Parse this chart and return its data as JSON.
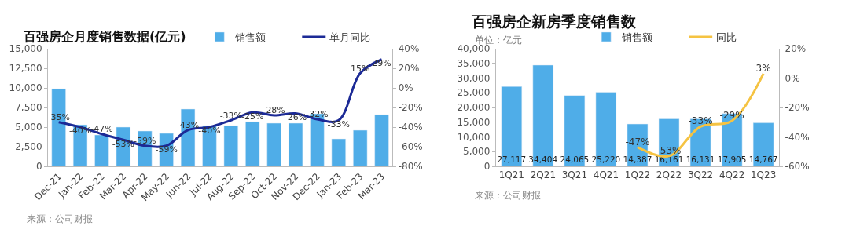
{
  "chart_data": [
    {
      "type": "bar",
      "title": "百强房企月度销售数据(亿元)",
      "categories": [
        "Dec-21",
        "Jan-22",
        "Feb-22",
        "Mar-22",
        "Apr-22",
        "May-22",
        "Jun-22",
        "Jul-22",
        "Aug-22",
        "Sep-22",
        "Oct-22",
        "Nov-22",
        "Dec-22",
        "Jan-23",
        "Feb-23",
        "Mar-23"
      ],
      "series": [
        {
          "name": "销售额",
          "color": "#4fade8",
          "values": [
            9900,
            5300,
            4000,
            5000,
            4500,
            4200,
            7300,
            5200,
            5200,
            5700,
            5500,
            5500,
            6700,
            3500,
            4600,
            6600
          ]
        },
        {
          "name": "单月同比",
          "type": "line",
          "axis": "y2",
          "color": "#1c2a96",
          "values": [
            -35,
            -40,
            -47,
            -53,
            -59,
            -59,
            -43,
            -40,
            -33,
            -25,
            -28,
            -26,
            -32,
            -33,
            15,
            29
          ],
          "value_labels": [
            "-35%",
            "-40%",
            "-47%",
            "-53%",
            "-59%",
            "-59%",
            "-43%",
            "-40%",
            "-33%",
            "-25%",
            "-28%",
            "-26%",
            "-32%",
            "-33%",
            "15%",
            "29%"
          ]
        }
      ],
      "ylim": [
        0,
        15000
      ],
      "yticks": [
        0,
        {
          "value": 2500,
          "label": "2,500"
        },
        {
          "value": 5000,
          "label": "5,000"
        },
        {
          "value": 7500,
          "label": "7,500"
        },
        {
          "value": 10000,
          "label": "10,000"
        },
        {
          "value": 12500,
          "label": "12,500"
        },
        {
          "value": 15000,
          "label": "15,000"
        }
      ],
      "y2lim": [
        -80,
        40
      ],
      "y2ticks": [
        {
          "value": -80,
          "label": "-80%"
        },
        {
          "value": -60,
          "label": "-60%"
        },
        {
          "value": -40,
          "label": "-40%"
        },
        {
          "value": -20,
          "label": "-20%"
        },
        {
          "value": 0,
          "label": "0%"
        },
        {
          "value": 20,
          "label": "20%"
        },
        {
          "value": 40,
          "label": "40%"
        }
      ],
      "legend": "top right",
      "marker": "none",
      "line_style": "solid",
      "annotations": [
        "来源：公司财报"
      ]
    },
    {
      "type": "bar",
      "title": "百强房企新房季度销售数",
      "subtitle": "单位：亿元",
      "categories": [
        "1Q21",
        "2Q21",
        "3Q21",
        "4Q21",
        "1Q22",
        "2Q22",
        "3Q22",
        "4Q22",
        "1Q23"
      ],
      "series": [
        {
          "name": "销售额",
          "color": "#4fade8",
          "values": [
            27117,
            34404,
            24065,
            25220,
            14387,
            16161,
            16131,
            17905,
            14767
          ],
          "value_labels": [
            "27,117",
            "34,404",
            "24,065",
            "25,220",
            "14,387",
            "16,161",
            "16,131",
            "17,905",
            "14,767"
          ]
        },
        {
          "name": "同比",
          "type": "line",
          "axis": "y2",
          "color": "#f5c342",
          "values": [
            null,
            null,
            null,
            null,
            -47,
            -53,
            -33,
            -29,
            3
          ],
          "value_labels": [
            null,
            null,
            null,
            null,
            "-47%",
            "-53%",
            "-33%",
            "-29%",
            "3%"
          ]
        }
      ],
      "ylim": [
        0,
        40000
      ],
      "yticks": [
        0,
        {
          "value": 5000,
          "label": "5,000"
        },
        {
          "value": 10000,
          "label": "10,000"
        },
        {
          "value": 15000,
          "label": "15,000"
        },
        {
          "value": 20000,
          "label": "20,000"
        },
        {
          "value": 25000,
          "label": "25,000"
        },
        {
          "value": 30000,
          "label": "30,000"
        },
        {
          "value": 35000,
          "label": "35,000"
        },
        {
          "value": 40000,
          "label": "40,000"
        }
      ],
      "y2lim": [
        -60,
        20
      ],
      "y2ticks": [
        {
          "value": -60,
          "label": "-60%"
        },
        {
          "value": -40,
          "label": "-40%"
        },
        {
          "value": -20,
          "label": "-20%"
        },
        {
          "value": 0,
          "label": "0%"
        },
        {
          "value": 20,
          "label": "20%"
        }
      ],
      "legend": "top right",
      "marker": "none",
      "line_style": "solid",
      "annotations": [
        "来源：公司财报"
      ]
    }
  ]
}
